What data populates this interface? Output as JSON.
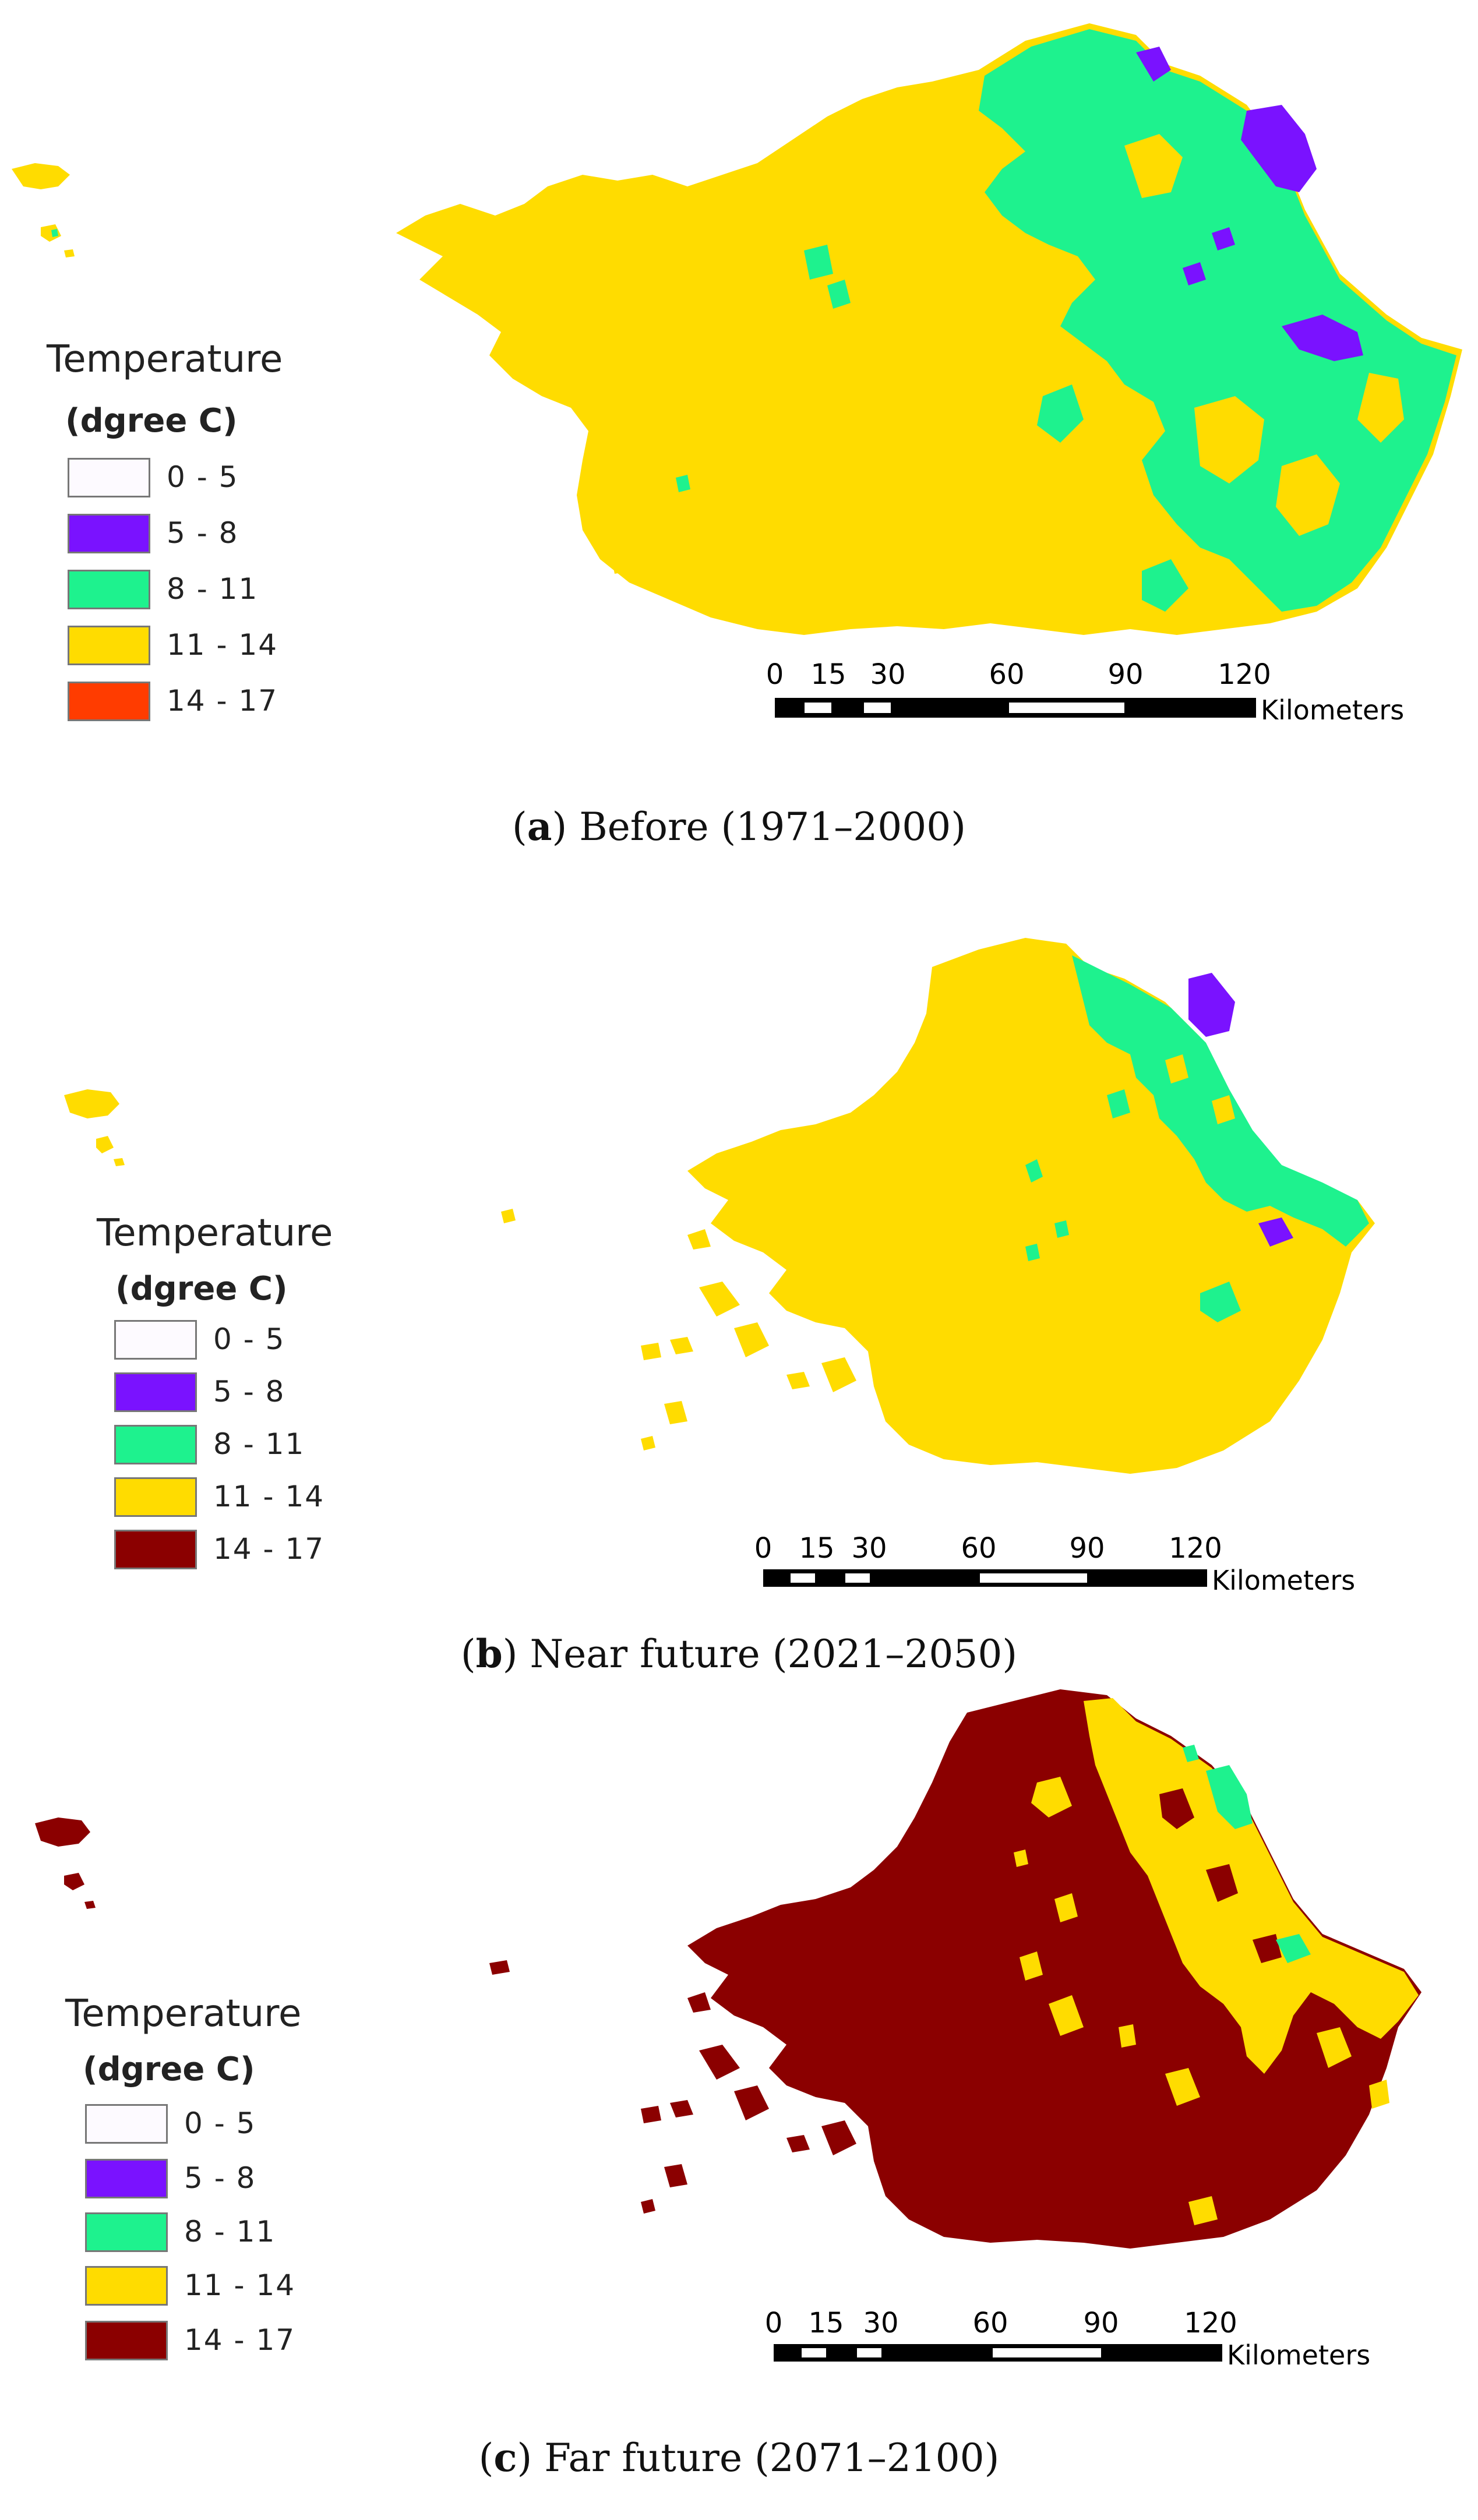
{
  "legend": {
    "title": "Temperature",
    "subtitle": "(dgree C)"
  },
  "scale": {
    "ticks": [
      "0",
      "15",
      "30",
      "60",
      "90",
      "120"
    ],
    "unit": "Kilometers"
  },
  "panels": [
    {
      "letter": "a",
      "caption": ") Before (1971–2000)",
      "classes": [
        {
          "label": "0 - 5",
          "color": "#fdfaff"
        },
        {
          "label": "5 - 8",
          "color": "#7a12ff"
        },
        {
          "label": "8 - 11",
          "color": "#1ef28e"
        },
        {
          "label": "11 - 14",
          "color": "#ffdc00"
        },
        {
          "label": "14 - 17",
          "color": "#ff3c00"
        }
      ]
    },
    {
      "letter": "b",
      "caption": ") Near future (2021–2050)",
      "classes": [
        {
          "label": "0 - 5",
          "color": "#fdfaff"
        },
        {
          "label": "5 - 8",
          "color": "#7a12ff"
        },
        {
          "label": "8 - 11",
          "color": "#1ef28e"
        },
        {
          "label": "11 - 14",
          "color": "#ffdc00"
        },
        {
          "label": "14 - 17",
          "color": "#8b0000"
        }
      ]
    },
    {
      "letter": "c",
      "caption": ") Far future (2071–2100)",
      "classes": [
        {
          "label": "0 - 5",
          "color": "#fdfaff"
        },
        {
          "label": "5 - 8",
          "color": "#7a12ff"
        },
        {
          "label": "8 - 11",
          "color": "#1ef28e"
        },
        {
          "label": "11 - 14",
          "color": "#ffdc00"
        },
        {
          "label": "14 - 17",
          "color": "#8b0000"
        }
      ]
    }
  ]
}
